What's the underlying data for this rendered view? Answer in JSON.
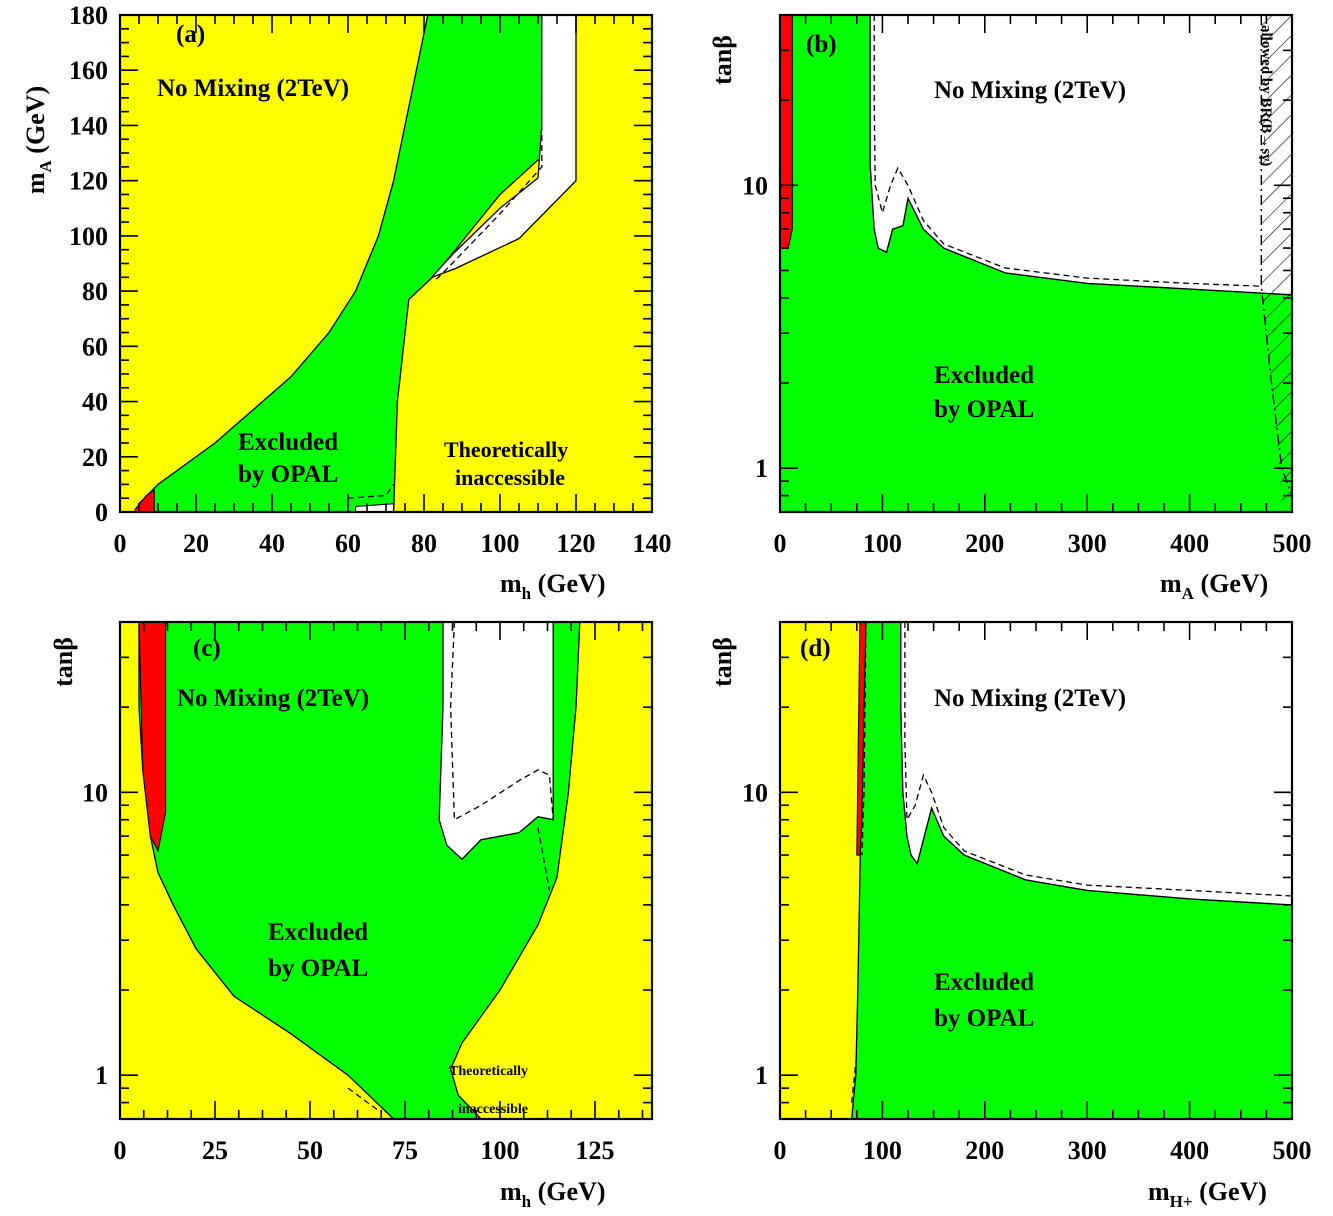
{
  "colors": {
    "excluded": "#00ff00",
    "theoretically_inaccessible": "#ffff00",
    "red_region": "#ff0000",
    "allowed": "#ffffff"
  },
  "chart_data": [
    {
      "panel": "a",
      "type": "area",
      "panel_label": "(a)",
      "scenario_label": "No Mixing (2TeV)",
      "excluded_label": [
        "Excluded",
        "by OPAL"
      ],
      "inaccessible_label": [
        "Theoretically",
        "inaccessible"
      ],
      "xlabel": {
        "main": "m",
        "sub": "h",
        "unit": " (GeV)"
      },
      "ylabel": {
        "main": "m",
        "sub": "A",
        "unit": " (GeV)"
      },
      "xlim": [
        0,
        140
      ],
      "ylim": [
        0,
        180
      ],
      "xscale": "linear",
      "yscale": "linear",
      "xticks": [
        0,
        20,
        40,
        60,
        80,
        100,
        120,
        140
      ],
      "yticks": [
        0,
        20,
        40,
        60,
        80,
        100,
        120,
        140,
        160,
        180
      ],
      "regions": {
        "theoretically_inaccessible": "whole frame",
        "excluded": [
          [
            5,
            0
          ],
          [
            5,
            3
          ],
          [
            10,
            10
          ],
          [
            25,
            25
          ],
          [
            45,
            49
          ],
          [
            55,
            65
          ],
          [
            62,
            80
          ],
          [
            68,
            100
          ],
          [
            72,
            120
          ],
          [
            75,
            140
          ],
          [
            78,
            160
          ],
          [
            81,
            180
          ],
          [
            112,
            180
          ],
          [
            112,
            130
          ],
          [
            100,
            115
          ],
          [
            83,
            86
          ],
          [
            76,
            77
          ],
          [
            73,
            40
          ],
          [
            72,
            0
          ]
        ],
        "allowed": [
          [
            111,
            180
          ],
          [
            120,
            180
          ],
          [
            120,
            120
          ],
          [
            105,
            99
          ],
          [
            88,
            88
          ],
          [
            82,
            85
          ],
          [
            88,
            94
          ],
          [
            100,
            110
          ],
          [
            110,
            121
          ],
          [
            111,
            140
          ]
        ],
        "allowed_bottom": [
          [
            62,
            0
          ],
          [
            72,
            0
          ],
          [
            72,
            3
          ],
          [
            62,
            2
          ]
        ],
        "red": [
          [
            4,
            0
          ],
          [
            9,
            0
          ],
          [
            9,
            8
          ],
          [
            7,
            6
          ],
          [
            4,
            1
          ]
        ]
      },
      "dashed": [
        [
          [
            111,
            180
          ],
          [
            111,
            125
          ],
          [
            100,
            108
          ],
          [
            86,
            88
          ],
          [
            83,
            84
          ]
        ],
        [
          [
            60,
            5
          ],
          [
            70,
            6
          ],
          [
            72,
            10
          ]
        ]
      ]
    },
    {
      "panel": "b",
      "type": "area",
      "panel_label": "(b)",
      "scenario_label": "No Mixing (2TeV)",
      "excluded_label": [
        "Excluded",
        "by OPAL"
      ],
      "side_label": "allowed by BR(B→sγ)",
      "xlabel": {
        "main": "m",
        "sub": "A",
        "unit": " (GeV)"
      },
      "ylabel": {
        "main": "tanβ",
        "sub": "",
        "unit": ""
      },
      "xlim": [
        0,
        500
      ],
      "ylim": [
        0.7,
        40
      ],
      "xscale": "linear",
      "yscale": "log",
      "xticks": [
        0,
        100,
        200,
        300,
        400,
        500
      ],
      "yticks": [
        1,
        10
      ],
      "regions": {
        "excluded": [
          [
            0,
            0.7
          ],
          [
            0,
            40
          ],
          [
            88,
            40
          ],
          [
            88,
            20
          ],
          [
            88,
            12
          ],
          [
            92,
            7
          ],
          [
            96,
            6
          ],
          [
            104,
            5.8
          ],
          [
            110,
            7
          ],
          [
            120,
            7.2
          ],
          [
            125,
            9
          ],
          [
            140,
            7
          ],
          [
            160,
            6
          ],
          [
            220,
            4.9
          ],
          [
            300,
            4.5
          ],
          [
            400,
            4.3
          ],
          [
            500,
            4.1
          ],
          [
            500,
            0.7
          ]
        ],
        "allowed": [
          [
            88,
            40
          ],
          [
            500,
            40
          ],
          [
            500,
            4.1
          ],
          [
            400,
            4.3
          ],
          [
            300,
            4.5
          ],
          [
            220,
            4.9
          ],
          [
            160,
            6
          ],
          [
            140,
            7
          ],
          [
            125,
            9
          ],
          [
            120,
            7.2
          ],
          [
            110,
            7
          ],
          [
            104,
            5.8
          ],
          [
            96,
            6
          ],
          [
            92,
            7
          ],
          [
            88,
            12
          ]
        ],
        "red": [
          [
            0,
            40
          ],
          [
            12,
            40
          ],
          [
            12,
            7
          ],
          [
            8,
            6
          ],
          [
            0,
            6
          ]
        ]
      },
      "dashed": [
        [
          [
            92,
            40
          ],
          [
            92,
            20
          ],
          [
            93,
            10
          ],
          [
            100,
            8
          ],
          [
            108,
            10
          ],
          [
            115,
            11.5
          ],
          [
            125,
            10
          ],
          [
            140,
            7.5
          ],
          [
            160,
            6.2
          ],
          [
            220,
            5.1
          ],
          [
            300,
            4.7
          ],
          [
            400,
            4.5
          ],
          [
            470,
            4.4
          ]
        ]
      ],
      "dashdot": [
        [
          [
            470,
            40
          ],
          [
            470,
            4.4
          ],
          [
            480,
            2
          ],
          [
            490,
            1
          ],
          [
            500,
            0.8
          ]
        ]
      ],
      "hatched": [
        [
          470,
          40
        ],
        [
          500,
          40
        ],
        [
          500,
          0.7
        ],
        [
          490,
          0.75
        ],
        [
          480,
          2
        ],
        [
          470,
          4.4
        ]
      ]
    },
    {
      "panel": "c",
      "type": "area",
      "panel_label": "(c)",
      "scenario_label": "No Mixing (2TeV)",
      "excluded_label": [
        "Excluded",
        "by OPAL"
      ],
      "inaccessible_label": [
        "Theoretically",
        "inaccessible"
      ],
      "xlabel": {
        "main": "m",
        "sub": "h",
        "unit": " (GeV)"
      },
      "ylabel": {
        "main": "tanβ",
        "sub": "",
        "unit": ""
      },
      "xlim": [
        0,
        140
      ],
      "ylim": [
        0.7,
        40
      ],
      "xscale": "linear",
      "yscale": "log",
      "xticks": [
        0,
        25,
        50,
        75,
        100,
        125
      ],
      "yticks": [
        1,
        10
      ],
      "regions": {
        "theoretically_inaccessible": "whole frame",
        "excluded": [
          [
            5,
            40
          ],
          [
            121,
            40
          ],
          [
            120,
            20
          ],
          [
            118,
            10
          ],
          [
            115,
            5
          ],
          [
            110,
            3.4
          ],
          [
            100,
            2
          ],
          [
            90,
            1.3
          ],
          [
            87,
            1.05
          ],
          [
            89,
            0.85
          ],
          [
            95,
            0.7
          ],
          [
            72,
            0.7
          ],
          [
            60,
            1
          ],
          [
            45,
            1.4
          ],
          [
            30,
            1.9
          ],
          [
            20,
            2.8
          ],
          [
            14,
            4
          ],
          [
            10,
            5.2
          ],
          [
            8,
            7
          ],
          [
            6,
            12
          ],
          [
            5,
            20
          ]
        ],
        "allowed": [
          [
            85,
            40
          ],
          [
            114,
            40
          ],
          [
            114,
            8
          ],
          [
            110,
            8.2
          ],
          [
            105,
            7.2
          ],
          [
            95,
            6.8
          ],
          [
            90,
            5.8
          ],
          [
            86,
            6.5
          ],
          [
            84,
            8
          ],
          [
            85,
            20
          ]
        ],
        "red": [
          [
            5,
            40
          ],
          [
            12,
            40
          ],
          [
            12,
            8.5
          ],
          [
            10,
            6.2
          ],
          [
            8,
            7
          ],
          [
            6,
            12
          ]
        ]
      },
      "dashed": [
        [
          [
            88,
            40
          ],
          [
            87,
            20
          ],
          [
            88,
            8
          ],
          [
            95,
            9
          ],
          [
            105,
            11
          ],
          [
            110,
            12
          ],
          [
            113,
            11.5
          ],
          [
            114,
            8
          ]
        ],
        [
          [
            110,
            7.5
          ],
          [
            113,
            4.5
          ]
        ],
        [
          [
            60,
            0.9
          ],
          [
            68,
            0.75
          ]
        ]
      ]
    },
    {
      "panel": "d",
      "type": "area",
      "panel_label": "(d)",
      "scenario_label": "No Mixing (2TeV)",
      "excluded_label": [
        "Excluded",
        "by OPAL"
      ],
      "xlabel": {
        "main": "m",
        "sub": "H+",
        "unit": " (GeV)"
      },
      "ylabel": {
        "main": "tanβ",
        "sub": "",
        "unit": ""
      },
      "xlim": [
        0,
        500
      ],
      "ylim": [
        0.7,
        40
      ],
      "xscale": "linear",
      "yscale": "log",
      "xticks": [
        0,
        100,
        200,
        300,
        400,
        500
      ],
      "yticks": [
        1,
        10
      ],
      "regions": {
        "theoretically_inaccessible": [
          [
            0,
            0.7
          ],
          [
            0,
            40
          ],
          [
            82,
            40
          ],
          [
            78,
            5
          ],
          [
            76,
            2
          ],
          [
            74,
            1
          ],
          [
            70,
            0.7
          ]
        ],
        "excluded": [
          [
            70,
            0.7
          ],
          [
            74,
            1
          ],
          [
            76,
            2
          ],
          [
            78,
            5
          ],
          [
            82,
            40
          ],
          [
            118,
            40
          ],
          [
            118,
            20
          ],
          [
            120,
            10
          ],
          [
            124,
            7
          ],
          [
            128,
            6
          ],
          [
            134,
            5.6
          ],
          [
            140,
            6.8
          ],
          [
            148,
            8.8
          ],
          [
            160,
            7
          ],
          [
            180,
            6
          ],
          [
            240,
            4.9
          ],
          [
            300,
            4.5
          ],
          [
            400,
            4.2
          ],
          [
            500,
            4
          ],
          [
            500,
            0.7
          ]
        ],
        "allowed": [
          [
            118,
            40
          ],
          [
            500,
            40
          ],
          [
            500,
            4
          ],
          [
            400,
            4.2
          ],
          [
            300,
            4.5
          ],
          [
            240,
            4.9
          ],
          [
            180,
            6
          ],
          [
            160,
            7
          ],
          [
            148,
            8.8
          ],
          [
            140,
            6.8
          ],
          [
            134,
            5.6
          ],
          [
            128,
            6
          ],
          [
            124,
            7
          ],
          [
            120,
            10
          ],
          [
            118,
            20
          ]
        ],
        "red": [
          [
            75,
            6
          ],
          [
            78,
            40
          ],
          [
            84,
            40
          ],
          [
            82,
            20
          ],
          [
            80,
            8
          ],
          [
            78,
            6
          ]
        ]
      },
      "dashed": [
        [
          [
            122,
            40
          ],
          [
            122,
            15
          ],
          [
            124,
            8
          ],
          [
            132,
            9
          ],
          [
            140,
            11.5
          ],
          [
            148,
            10
          ],
          [
            160,
            7.5
          ],
          [
            180,
            6.2
          ],
          [
            240,
            5.1
          ],
          [
            300,
            4.7
          ],
          [
            400,
            4.5
          ],
          [
            500,
            4.3
          ]
        ],
        [
          [
            84,
            40
          ],
          [
            82,
            10
          ],
          [
            80,
            6
          ]
        ],
        [
          [
            70,
            0.8
          ],
          [
            75,
            1.2
          ]
        ]
      ]
    }
  ]
}
